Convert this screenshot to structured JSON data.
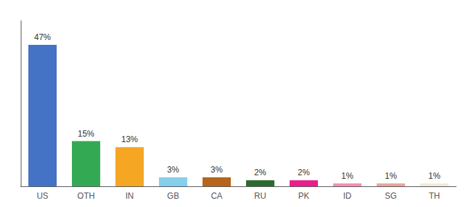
{
  "chart_data": {
    "type": "bar",
    "categories": [
      "US",
      "OTH",
      "IN",
      "GB",
      "CA",
      "RU",
      "PK",
      "ID",
      "SG",
      "TH"
    ],
    "values": [
      47,
      15,
      13,
      3,
      3,
      2,
      2,
      1,
      1,
      1
    ],
    "value_labels": [
      "47%",
      "15%",
      "13%",
      "3%",
      "3%",
      "2%",
      "2%",
      "1%",
      "1%",
      "1%"
    ],
    "colors": [
      "#4472c4",
      "#33a953",
      "#f5a623",
      "#87ceeb",
      "#b5651d",
      "#2d6a2d",
      "#e91e8c",
      "#f48fb1",
      "#e8a898",
      "#f0ead6"
    ],
    "ylim": [
      0,
      55
    ],
    "data_labels": true,
    "tick_labels": "x",
    "grid": false
  }
}
